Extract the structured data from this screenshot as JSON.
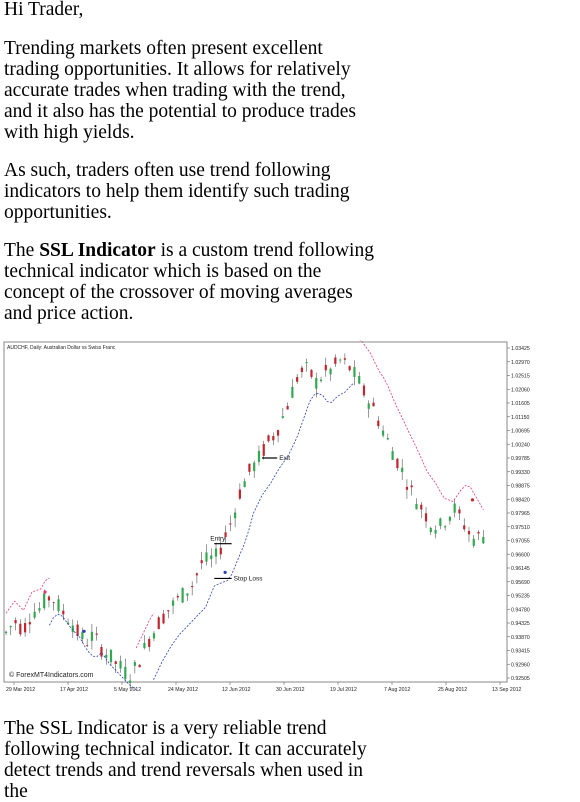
{
  "article": {
    "greeting": "Hi Trader,",
    "p1": "Trending markets often present excellent trading opportunities. It allows for relatively accurate trades when trading with the trend, and it also has the potential to produce trades with high yields.",
    "p2": "As such, traders often use trend following indicators to help them identify such trading opportunities.",
    "p3_prefix": "The ",
    "p3_bold": "SSL Indicator",
    "p3_suffix": " is a custom trend following technical indicator which is based on the concept of the crossover of moving averages and price action.",
    "p4": "The SSL Indicator is a very reliable trend following technical indicator. It can accurately detect trends and trend reversals when used in the"
  },
  "chart_data": {
    "type": "candlestick",
    "title": "AUDCHF, Daily:  Australian Dollar vs Swiss Franc",
    "watermark": "© ForexMT4Indicators.com",
    "x_ticks": [
      "29 Mar 2012",
      "17 Apr 2012",
      "5 May 2012",
      "24 May 2012",
      "12 Jun 2012",
      "30 Jun 2012",
      "19 Jul 2012",
      "7 Aug 2012",
      "25 Aug 2012",
      "13 Sep 2012"
    ],
    "y_ticks": [
      "1.03425",
      "1.02970",
      "1.02515",
      "1.02060",
      "1.01605",
      "1.01150",
      "1.00695",
      "1.00240",
      "0.99785",
      "0.99330",
      "0.98875",
      "0.98420",
      "0.97965",
      "0.97510",
      "0.97055",
      "0.96600",
      "0.96145",
      "0.95690",
      "0.95235",
      "0.94780",
      "0.94325",
      "0.93870",
      "0.93415",
      "0.92960",
      "0.92505"
    ],
    "ylim": [
      0.92505,
      1.03425
    ],
    "annotations": [
      {
        "label": "Exit",
        "value": 0.99785
      },
      {
        "label": "Entry",
        "value": 0.9695
      },
      {
        "label": "Stop Loss",
        "value": 0.958
      }
    ],
    "close_path": [
      [
        0,
        0.94
      ],
      [
        4,
        0.944
      ],
      [
        8,
        0.941
      ],
      [
        12,
        0.947
      ],
      [
        16,
        0.948
      ],
      [
        19,
        0.952
      ],
      [
        22,
        0.951
      ],
      [
        26,
        0.947
      ],
      [
        30,
        0.944
      ],
      [
        33,
        0.94
      ],
      [
        37,
        0.937
      ],
      [
        40,
        0.939
      ],
      [
        44,
        0.935
      ],
      [
        48,
        0.932
      ],
      [
        52,
        0.929
      ],
      [
        55,
        0.927
      ],
      [
        58,
        0.926
      ],
      [
        62,
        0.932
      ],
      [
        66,
        0.938
      ],
      [
        70,
        0.943
      ],
      [
        74,
        0.947
      ],
      [
        78,
        0.95
      ],
      [
        82,
        0.953
      ],
      [
        86,
        0.956
      ],
      [
        90,
        0.963
      ],
      [
        93,
        0.964
      ],
      [
        97,
        0.965
      ],
      [
        101,
        0.972
      ],
      [
        105,
        0.979
      ],
      [
        108,
        0.987
      ],
      [
        112,
        0.993
      ],
      [
        116,
        0.997
      ],
      [
        120,
        1.002
      ],
      [
        124,
        1.006
      ],
      [
        128,
        1.012
      ],
      [
        131,
        1.018
      ],
      [
        135,
        1.026
      ],
      [
        139,
        1.027
      ],
      [
        143,
        1.023
      ],
      [
        147,
        1.026
      ],
      [
        150,
        1.027
      ],
      [
        154,
        1.03
      ],
      [
        158,
        1.028
      ],
      [
        162,
        1.024
      ],
      [
        166,
        1.018
      ],
      [
        169,
        1.015
      ],
      [
        173,
        1.008
      ],
      [
        177,
        1.002
      ],
      [
        181,
        0.996
      ],
      [
        185,
        0.99
      ],
      [
        188,
        0.985
      ],
      [
        192,
        0.981
      ],
      [
        196,
        0.976
      ],
      [
        200,
        0.975
      ],
      [
        204,
        0.979
      ],
      [
        207,
        0.981
      ],
      [
        211,
        0.976
      ],
      [
        215,
        0.971
      ],
      [
        219,
        0.972
      ]
    ],
    "colors": {
      "bull": "#32a852",
      "bear": "#c0262e",
      "ssl_up": "#2b3fb8",
      "ssl_down": "#e0377a"
    }
  }
}
